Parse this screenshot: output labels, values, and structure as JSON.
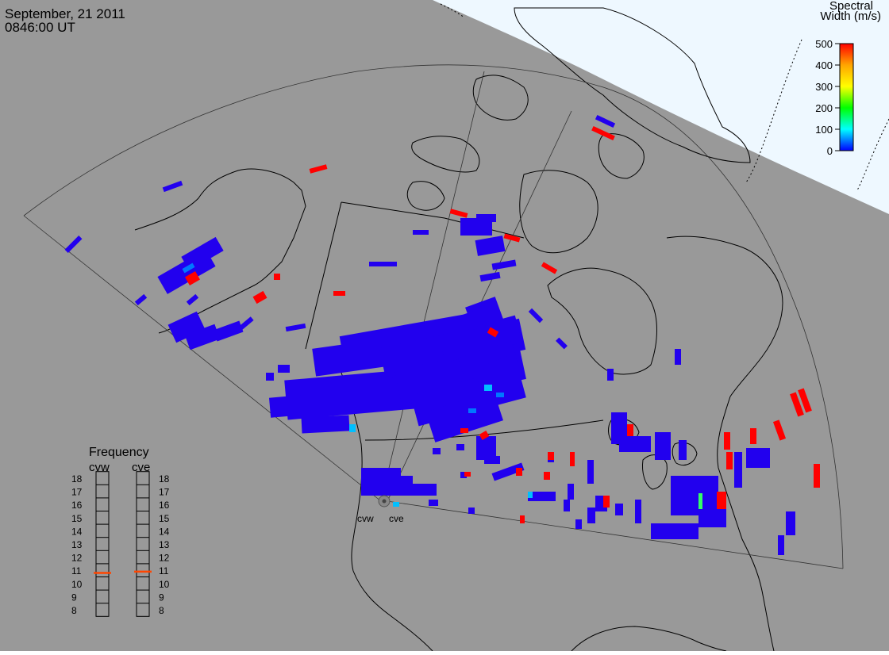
{
  "header": {
    "date": "September, 21 2011",
    "time": "0846:00 UT"
  },
  "colorbar": {
    "title_line1": "Spectral",
    "title_line2": "Width (m/s)",
    "ticks": [
      "500",
      "400",
      "300",
      "200",
      "100",
      "0"
    ],
    "colors": [
      "#ff0000",
      "#ffa500",
      "#ffff00",
      "#00ff00",
      "#00ffff",
      "#0000ff"
    ]
  },
  "frequency_panel": {
    "title": "Frequency",
    "radars": [
      {
        "code": "cvw",
        "value_mhz": 10.8
      },
      {
        "code": "cve",
        "value_mhz": 10.9
      }
    ],
    "scale": [
      "18",
      "17",
      "16",
      "15",
      "14",
      "13",
      "12",
      "11",
      "10",
      "9",
      "8"
    ],
    "marker_color": "#ff4500"
  },
  "radar_labels": [
    "cvw",
    "cve"
  ],
  "map": {
    "background_color": "#999999",
    "daylight_color": "#eef8ff",
    "land_outline_color": "#000000",
    "scatter_primary_color": "#2200ee"
  }
}
